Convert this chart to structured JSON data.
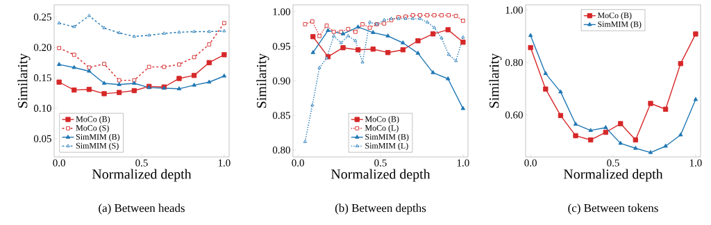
{
  "chart_data": [
    {
      "type": "line",
      "title": "(a) Between heads",
      "xlabel": "Normalized depth",
      "ylabel": "Similarity",
      "x": [
        0,
        0.091,
        0.182,
        0.273,
        0.364,
        0.455,
        0.545,
        0.636,
        0.727,
        0.818,
        0.909,
        1
      ],
      "series": [
        {
          "name": "MoCo (B)",
          "color": "#d62728",
          "marker": "square",
          "line_style": "solid",
          "values": [
            0.143,
            0.13,
            0.131,
            0.124,
            0.126,
            0.129,
            0.136,
            0.135,
            0.149,
            0.154,
            0.175,
            0.188
          ]
        },
        {
          "name": "MoCo (S)",
          "color": "#d62728",
          "marker": "square",
          "line_style": "dashed",
          "values": [
            0.199,
            0.188,
            0.167,
            0.173,
            0.146,
            0.146,
            0.168,
            0.168,
            0.172,
            0.184,
            0.205,
            0.24
          ]
        },
        {
          "name": "SimMIM (B)",
          "color": "#1f77b4",
          "marker": "triangle",
          "line_style": "solid",
          "values": [
            0.172,
            0.167,
            0.161,
            0.141,
            0.139,
            0.141,
            0.134,
            0.133,
            0.132,
            0.138,
            0.143,
            0.153
          ]
        },
        {
          "name": "SimMIM (S)",
          "color": "#1f77b4",
          "marker": "triangle",
          "line_style": "dashed",
          "values": [
            0.24,
            0.234,
            0.252,
            0.232,
            0.224,
            0.218,
            0.22,
            0.223,
            0.225,
            0.226,
            0.226,
            0.227
          ]
        }
      ],
      "xlim": [
        -0.03,
        1.03
      ],
      "ylim": [
        0.02,
        0.27
      ],
      "xticks": [
        {
          "value": 0,
          "label": "0.0"
        },
        {
          "value": 0.5,
          "label": "0.5"
        },
        {
          "value": 1,
          "label": "1.0"
        }
      ],
      "yticks": [
        {
          "value": 0.05,
          "label": "0.05"
        },
        {
          "value": 0.1,
          "label": "0.10"
        },
        {
          "value": 0.15,
          "label": "0.15"
        },
        {
          "value": 0.2,
          "label": "0.20"
        },
        {
          "value": 0.25,
          "label": "0.25"
        }
      ],
      "legend": "bottom left",
      "grid": false
    },
    {
      "type": "line",
      "title": "(b) Between depths",
      "xlabel": "Normalized depth",
      "ylabel": "Similarity",
      "series": [
        {
          "name": "MoCo (B)",
          "color": "#d62728",
          "marker": "square",
          "line_style": "solid",
          "x": [
            0.091,
            0.182,
            0.273,
            0.364,
            0.455,
            0.545,
            0.636,
            0.727,
            0.818,
            0.909,
            1
          ],
          "values": [
            0.964,
            0.935,
            0.948,
            0.945,
            0.946,
            0.941,
            0.945,
            0.958,
            0.968,
            0.974,
            0.956
          ]
        },
        {
          "name": "MoCo (L)",
          "color": "#d62728",
          "marker": "square",
          "line_style": "dotted",
          "x": [
            0.043,
            0.087,
            0.13,
            0.174,
            0.217,
            0.261,
            0.304,
            0.348,
            0.391,
            0.435,
            0.478,
            0.522,
            0.565,
            0.609,
            0.652,
            0.696,
            0.739,
            0.783,
            0.826,
            0.87,
            0.913,
            0.957,
            1
          ],
          "values": [
            0.982,
            0.986,
            0.965,
            0.98,
            0.971,
            0.971,
            0.975,
            0.971,
            0.982,
            0.977,
            0.982,
            0.983,
            0.988,
            0.992,
            0.993,
            0.995,
            0.995,
            0.995,
            0.995,
            0.995,
            0.995,
            0.994,
            0.987
          ]
        },
        {
          "name": "SimMIM (B)",
          "color": "#1f77b4",
          "marker": "triangle",
          "line_style": "solid",
          "x": [
            0.091,
            0.182,
            0.273,
            0.364,
            0.455,
            0.545,
            0.636,
            0.727,
            0.818,
            0.909,
            1
          ],
          "values": [
            0.941,
            0.973,
            0.968,
            0.978,
            0.97,
            0.965,
            0.955,
            0.94,
            0.912,
            0.903,
            0.86
          ]
        },
        {
          "name": "SimMIM (L)",
          "color": "#1f77b4",
          "marker": "triangle",
          "line_style": "dotted",
          "x": [
            0.043,
            0.087,
            0.13,
            0.174,
            0.217,
            0.261,
            0.304,
            0.348,
            0.391,
            0.435,
            0.478,
            0.522,
            0.565,
            0.609,
            0.652,
            0.696,
            0.739,
            0.783,
            0.826,
            0.87,
            0.913,
            0.957,
            1
          ],
          "values": [
            0.812,
            0.865,
            0.919,
            0.933,
            0.965,
            0.955,
            0.965,
            0.958,
            0.927,
            0.985,
            0.982,
            0.988,
            0.99,
            0.99,
            0.99,
            0.99,
            0.99,
            0.985,
            0.977,
            0.962,
            0.938,
            0.929,
            0.963
          ]
        }
      ],
      "xlim": [
        -0.03,
        1.03
      ],
      "ylim": [
        0.79,
        1.01
      ],
      "xticks": [
        {
          "value": 0,
          "label": "0.0"
        },
        {
          "value": 0.5,
          "label": "0.5"
        },
        {
          "value": 1,
          "label": "1.0"
        }
      ],
      "yticks": [
        {
          "value": 0.8,
          "label": "0.80"
        },
        {
          "value": 0.85,
          "label": "0.85"
        },
        {
          "value": 0.9,
          "label": "0.90"
        },
        {
          "value": 0.95,
          "label": "0.95"
        },
        {
          "value": 1.0,
          "label": "1.00"
        }
      ],
      "legend": "bottom",
      "grid": false
    },
    {
      "type": "line",
      "title": "(c) Between tokens",
      "xlabel": "Normalized depth",
      "ylabel": "Similarity",
      "x": [
        0,
        0.091,
        0.182,
        0.273,
        0.364,
        0.455,
        0.545,
        0.636,
        0.727,
        0.818,
        0.909,
        1
      ],
      "series": [
        {
          "name": "MoCo (B)",
          "color": "#d62728",
          "marker": "square",
          "line_style": "solid",
          "values": [
            0.857,
            0.699,
            0.598,
            0.521,
            0.505,
            0.534,
            0.567,
            0.505,
            0.644,
            0.622,
            0.796,
            0.909
          ]
        },
        {
          "name": "SimMIM (B)",
          "color": "#1f77b4",
          "marker": "triangle",
          "line_style": "solid",
          "values": [
            0.903,
            0.758,
            0.688,
            0.565,
            0.541,
            0.552,
            0.492,
            0.473,
            0.457,
            0.481,
            0.524,
            0.659
          ]
        }
      ],
      "xlim": [
        -0.03,
        1.03
      ],
      "ylim": [
        0.44,
        1.02
      ],
      "xticks": [
        {
          "value": 0,
          "label": "0.0"
        },
        {
          "value": 0.5,
          "label": "0.5"
        },
        {
          "value": 1,
          "label": "1.0"
        }
      ],
      "yticks": [
        {
          "value": 0.6,
          "label": "0.60"
        },
        {
          "value": 0.8,
          "label": "0.80"
        },
        {
          "value": 1.0,
          "label": "1.00"
        }
      ],
      "legend": "top",
      "grid": false
    }
  ]
}
